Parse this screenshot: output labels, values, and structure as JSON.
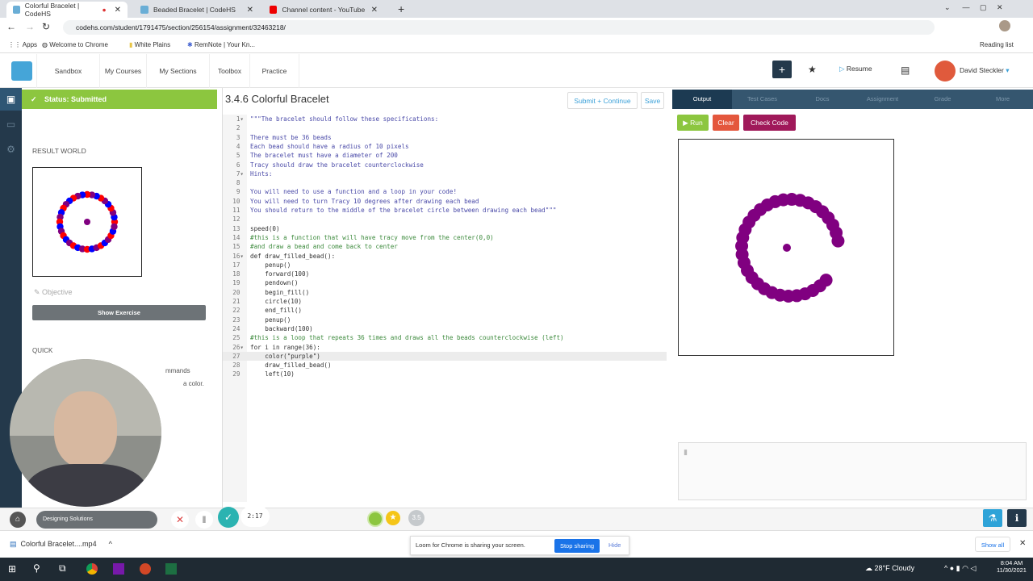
{
  "browser": {
    "tabs": [
      {
        "title": "Colorful Bracelet | CodeHS",
        "active": true
      },
      {
        "title": "Beaded Bracelet | CodeHS"
      },
      {
        "title": "Channel content - YouTube Studi"
      }
    ],
    "url": "codehs.com/student/1791475/section/256154/assignment/32463218/",
    "bookmarks": [
      "Apps",
      "Welcome to Chrome",
      "White Plains",
      "RemNote | Your Kn..."
    ],
    "reading_list": "Reading list"
  },
  "nav": {
    "items": [
      "Sandbox",
      "My Courses",
      "My Sections",
      "Toolbox",
      "Practice"
    ],
    "resume": "Resume",
    "user": "David Steckler"
  },
  "left": {
    "status": "Status: Submitted",
    "result_world": "RESULT WORLD",
    "objective": "Objective",
    "show_exercise": "Show Exercise",
    "quick": "QUICK",
    "frag1": "mmands",
    "frag2": "a color."
  },
  "editor": {
    "title": "3.4.6 Colorful Bracelet",
    "submit": "Submit + Continue",
    "save": "Save",
    "lines": [
      {
        "t": "\"\"\"The bracelet should follow these specifications:",
        "k": "doc"
      },
      {
        "t": "",
        "k": "doc"
      },
      {
        "t": "There must be 36 beads",
        "k": "doc"
      },
      {
        "t": "Each bead should have a radius of 10 pixels",
        "k": "doc"
      },
      {
        "t": "The bracelet must have a diameter of 200",
        "k": "doc"
      },
      {
        "t": "Tracy should draw the bracelet counterclockwise",
        "k": "doc"
      },
      {
        "t": "Hints:",
        "k": "doc"
      },
      {
        "t": "",
        "k": "doc"
      },
      {
        "t": "You will need to use a function and a loop in your code!",
        "k": "doc"
      },
      {
        "t": "You will need to turn Tracy 10 degrees after drawing each bead",
        "k": "doc"
      },
      {
        "t": "You should return to the middle of the bracelet circle between drawing each bead\"\"\"",
        "k": "doc"
      },
      {
        "t": "",
        "k": "code"
      },
      {
        "t": "speed(0)",
        "k": "code"
      },
      {
        "t": "#this is a function that will have tracy move from the center(0,0)",
        "k": "com"
      },
      {
        "t": "#and draw a bead and come back to center",
        "k": "com"
      },
      {
        "t": "def draw_filled_bead():",
        "k": "code"
      },
      {
        "t": "    penup()",
        "k": "code"
      },
      {
        "t": "    forward(100)",
        "k": "code"
      },
      {
        "t": "    pendown()",
        "k": "code"
      },
      {
        "t": "    begin_fill()",
        "k": "code"
      },
      {
        "t": "    circle(10)",
        "k": "code"
      },
      {
        "t": "    end_fill()",
        "k": "code"
      },
      {
        "t": "    penup()",
        "k": "code"
      },
      {
        "t": "    backward(100)",
        "k": "code"
      },
      {
        "t": "#this is a loop that repeats 36 times and draws all the beads counterclockwise (left)",
        "k": "com"
      },
      {
        "t": "for i in range(36):",
        "k": "code"
      },
      {
        "t": "    color(\"purple\")",
        "k": "code"
      },
      {
        "t": "    draw_filled_bead()",
        "k": "code"
      },
      {
        "t": "    left(10)",
        "k": "code"
      }
    ]
  },
  "right": {
    "tabs": [
      "Output",
      "Test Cases",
      "Docs",
      "Assignment",
      "Grade",
      "More"
    ],
    "run": "Run",
    "clear": "Clear",
    "check": "Check Code"
  },
  "recorder": {
    "crumb": "Designing Solutions",
    "time": "2:17",
    "badge": "3.5"
  },
  "download": {
    "file": "Colorful Bracelet....mp4",
    "show_all": "Show all"
  },
  "loom": {
    "msg": "Loom for Chrome is sharing your screen.",
    "stop": "Stop sharing",
    "hide": "Hide"
  },
  "taskbar": {
    "weather": "28°F  Cloudy",
    "time": "8:04 AM",
    "date": "11/30/2021"
  },
  "colors": {
    "green": "#8cc63f",
    "navy": "#24394b",
    "purple": "#800080",
    "run": "#8cc63f",
    "clear": "#e4573d",
    "check": "#a0195a"
  }
}
